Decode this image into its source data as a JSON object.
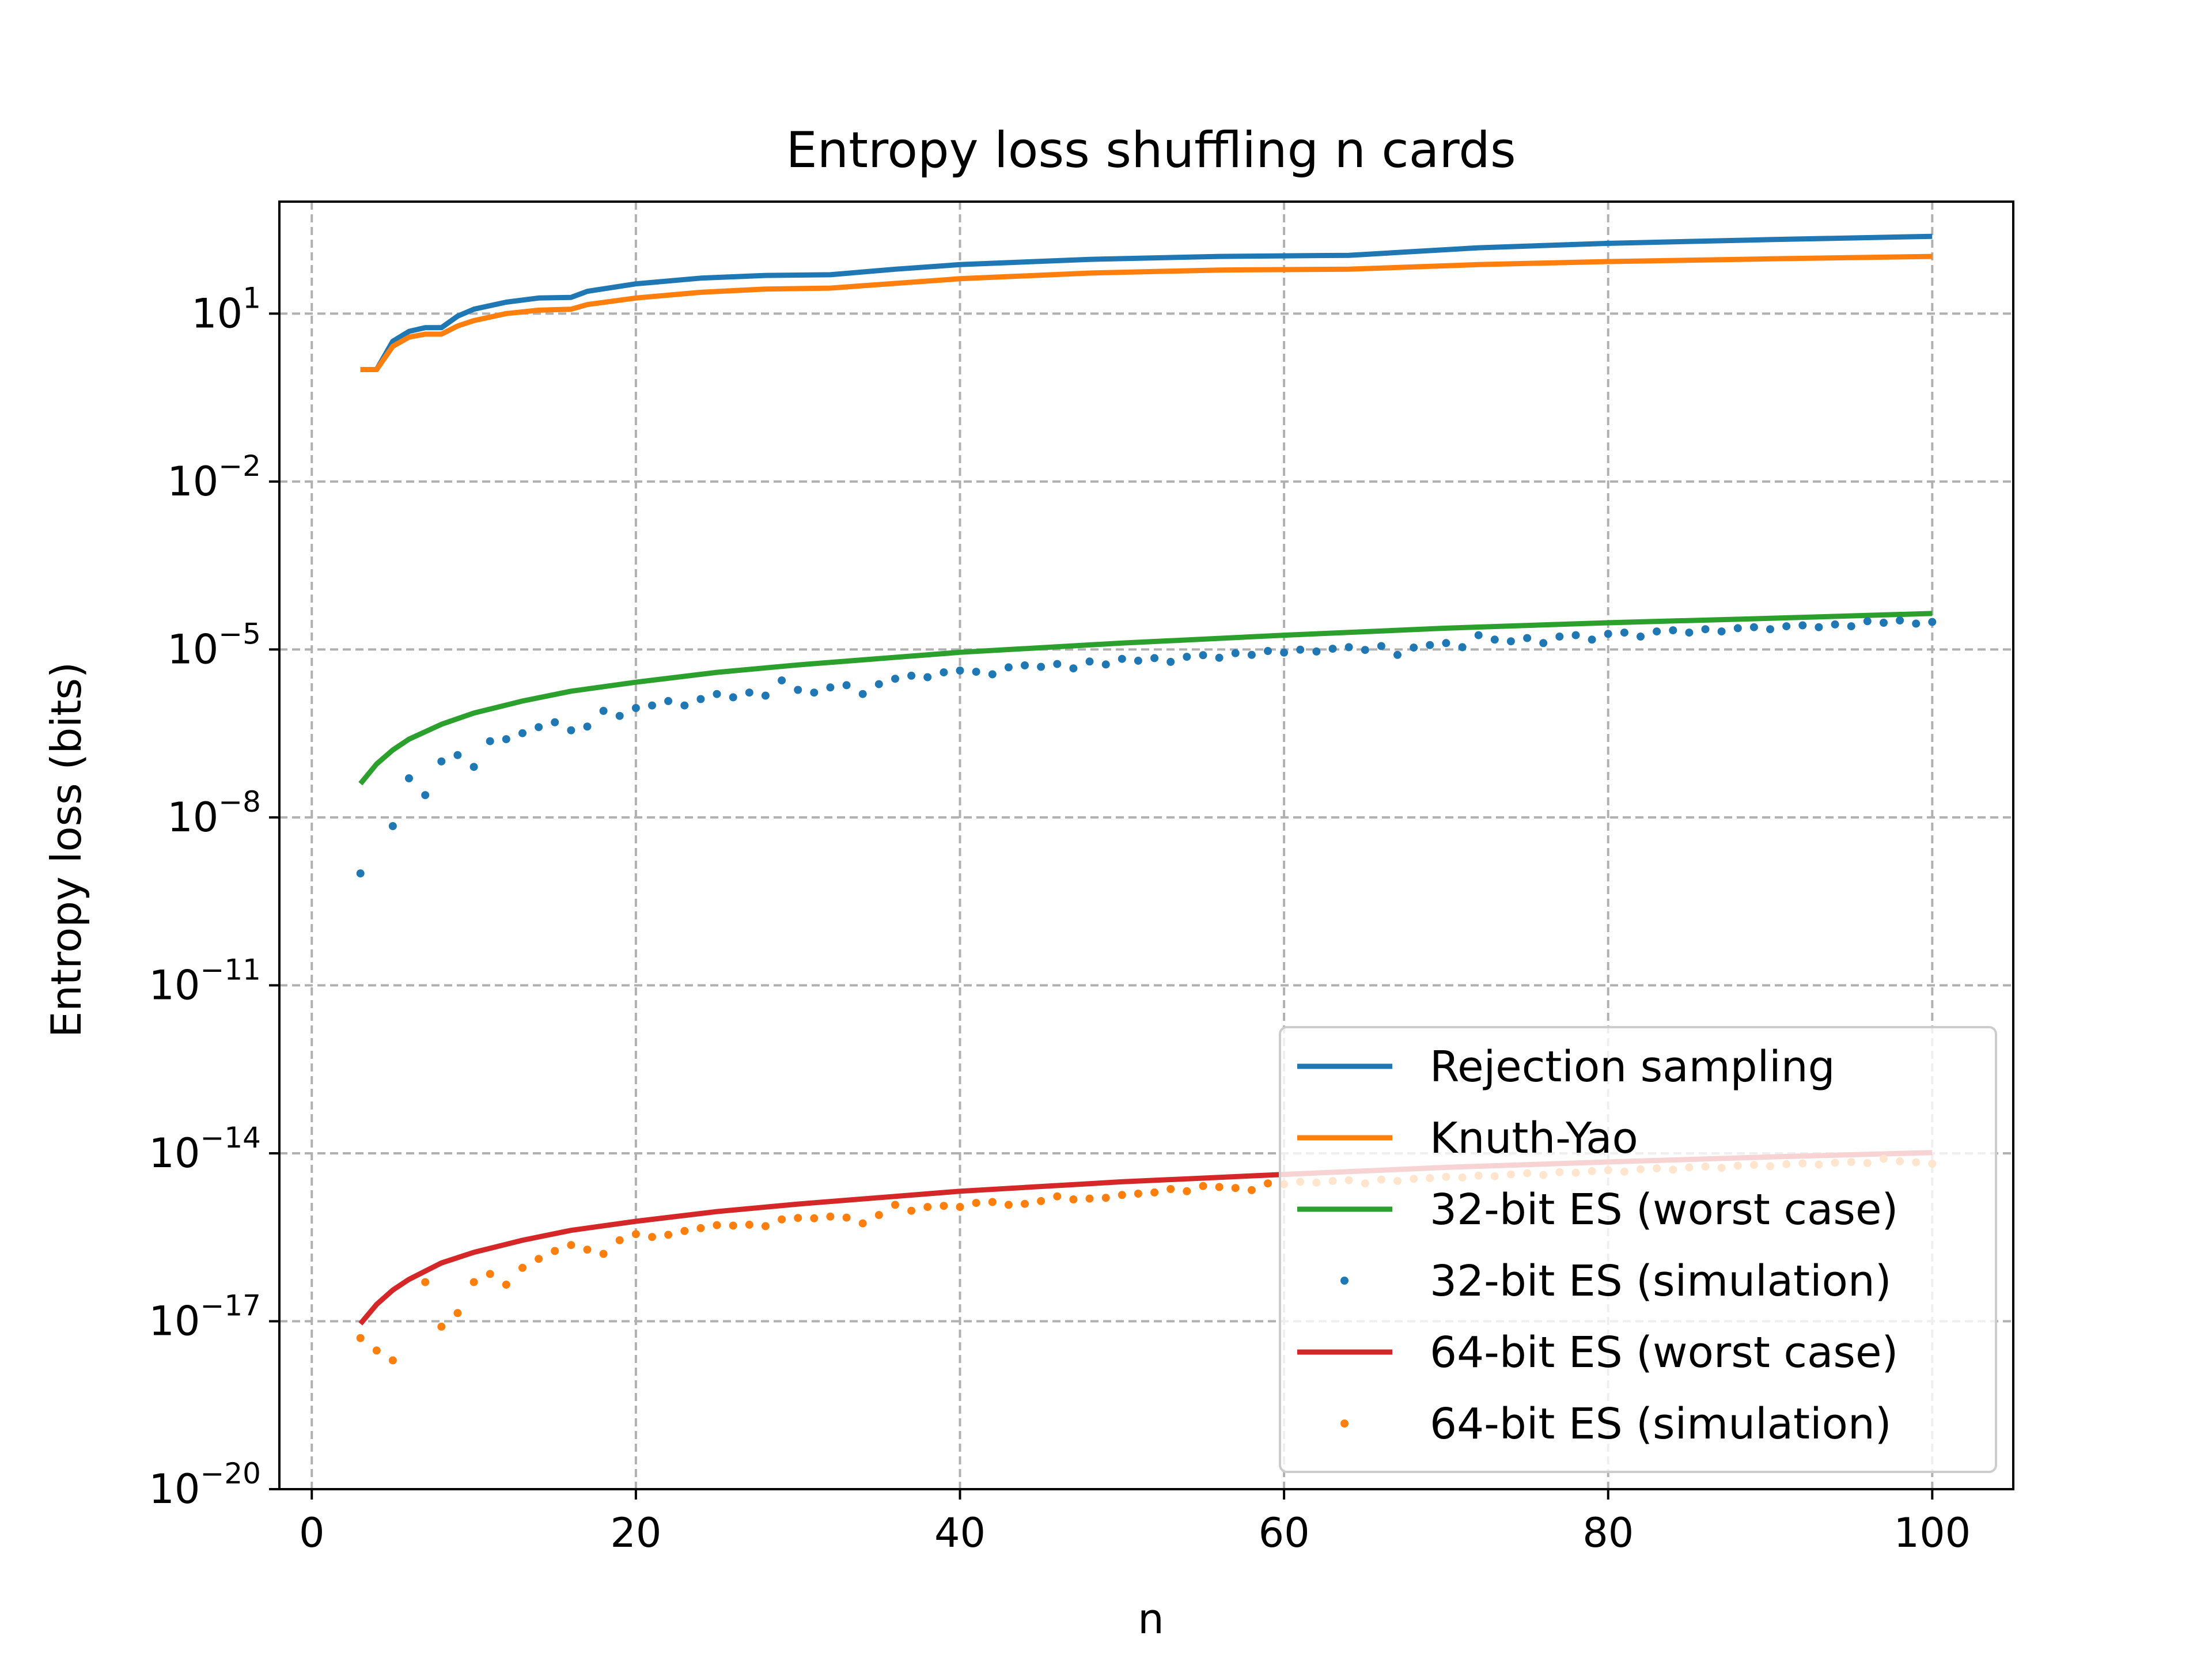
{
  "chart_data": {
    "type": "line",
    "title": "Entropy loss shuffling n cards",
    "xlabel": "n",
    "ylabel": "Entropy loss (bits)",
    "xlim": [
      -2,
      105
    ],
    "xticks": [
      0,
      20,
      40,
      60,
      80,
      100
    ],
    "yscale": "log",
    "ylim_exponent": [
      -20,
      3
    ],
    "yticks_exponent": [
      1,
      -2,
      -5,
      -8,
      -11,
      -14,
      -17,
      -20
    ],
    "grid": true,
    "legend_position": "lower-right",
    "series": [
      {
        "name": "Rejection sampling",
        "style": "line",
        "color": "#1f77b4",
        "x": [
          3,
          4,
          5,
          6,
          7,
          8,
          9,
          10,
          12,
          14,
          16,
          17,
          20,
          24,
          28,
          32,
          36,
          40,
          48,
          56,
          64,
          72,
          80,
          90,
          100
        ],
        "y": [
          1.0,
          1.0,
          3.2,
          4.8,
          5.6,
          5.6,
          9.0,
          12.0,
          16.0,
          19.0,
          19.5,
          25.0,
          34.0,
          43.0,
          48.0,
          49.5,
          62.0,
          75.0,
          93.0,
          105.0,
          110.0,
          150.0,
          180.0,
          210.0,
          240.0
        ]
      },
      {
        "name": "Knuth-Yao",
        "style": "line",
        "color": "#ff7f0e",
        "x": [
          3,
          4,
          5,
          6,
          7,
          8,
          9,
          10,
          12,
          14,
          16,
          17,
          20,
          24,
          28,
          32,
          40,
          48,
          56,
          64,
          72,
          80,
          90,
          100
        ],
        "y": [
          1.0,
          1.0,
          2.6,
          3.8,
          4.3,
          4.3,
          6.0,
          7.5,
          10.0,
          11.5,
          12.0,
          14.5,
          19.0,
          24.0,
          27.5,
          28.5,
          42.0,
          53.0,
          60.0,
          62.0,
          75.0,
          85.0,
          95.0,
          105.0
        ]
      },
      {
        "name": "32-bit ES (worst case)",
        "style": "line",
        "color": "#2ca02c",
        "x": [
          3,
          4,
          5,
          6,
          8,
          10,
          13,
          16,
          20,
          25,
          30,
          40,
          50,
          60,
          70,
          80,
          90,
          100
        ],
        "y": [
          4e-08,
          9e-08,
          1.6e-07,
          2.5e-07,
          4.6e-07,
          7.3e-07,
          1.2e-06,
          1.8e-06,
          2.6e-06,
          3.9e-06,
          5.3e-06,
          8.9e-06,
          1.3e-05,
          1.8e-05,
          2.4e-05,
          3e-05,
          3.6e-05,
          4.4e-05
        ]
      },
      {
        "name": "32-bit ES (simulation)",
        "style": "points",
        "color": "#1f77b4",
        "x": [
          3,
          5,
          6,
          7,
          8,
          9,
          10,
          11,
          12,
          13,
          14,
          15,
          16,
          17,
          18,
          19,
          20,
          21,
          22,
          23,
          24,
          25,
          26,
          27,
          28,
          29,
          30,
          31,
          32,
          33,
          34,
          35,
          36,
          37,
          38,
          39,
          40,
          41,
          42,
          43,
          44,
          45,
          46,
          47,
          48,
          49,
          50,
          51,
          52,
          53,
          54,
          55,
          56,
          57,
          58,
          59,
          60,
          61,
          62,
          63,
          64,
          65,
          66,
          67,
          68,
          69,
          70,
          71,
          72,
          73,
          74,
          75,
          76,
          77,
          78,
          79,
          80,
          81,
          82,
          83,
          84,
          85,
          86,
          87,
          88,
          89,
          90,
          91,
          92,
          93,
          94,
          95,
          96,
          97,
          98,
          99,
          100
        ],
        "y": [
          1e-09,
          7e-09,
          5e-08,
          2.5e-08,
          1e-07,
          1.3e-07,
          8e-08,
          2.3e-07,
          2.5e-07,
          3.2e-07,
          4.1e-07,
          5e-07,
          3.6e-07,
          4.2e-07,
          8e-07,
          6.5e-07,
          9e-07,
          1e-06,
          1.2e-06,
          1e-06,
          1.3e-06,
          1.6e-06,
          1.4e-06,
          1.7e-06,
          1.5e-06,
          2.8e-06,
          1.9e-06,
          1.7e-06,
          2.1e-06,
          2.3e-06,
          1.6e-06,
          2.4e-06,
          3e-06,
          3.4e-06,
          3.2e-06,
          3.9e-06,
          4.2e-06,
          4e-06,
          3.6e-06,
          4.8e-06,
          5.2e-06,
          4.9e-06,
          5.5e-06,
          4.6e-06,
          6.1e-06,
          5.4e-06,
          6.8e-06,
          6.3e-06,
          7e-06,
          6e-06,
          7.4e-06,
          7.9e-06,
          7.1e-06,
          8.6e-06,
          8e-06,
          9.4e-06,
          8.8e-06,
          9.9e-06,
          9.2e-06,
          1.03e-05,
          1.1e-05,
          9.8e-06,
          1.15e-05,
          8e-06,
          1.08e-05,
          1.2e-05,
          1.3e-05,
          1.1e-05,
          1.8e-05,
          1.5e-05,
          1.4e-05,
          1.6e-05,
          1.3e-05,
          1.7e-05,
          1.8e-05,
          1.5e-05,
          1.9e-05,
          2e-05,
          1.7e-05,
          2.1e-05,
          2.2e-05,
          2e-05,
          2.3e-05,
          2.1e-05,
          2.4e-05,
          2.5e-05,
          2.3e-05,
          2.6e-05,
          2.7e-05,
          2.5e-05,
          2.8e-05,
          2.6e-05,
          3.2e-05,
          3e-05,
          3.3e-05,
          2.9e-05,
          3.1e-05
        ]
      },
      {
        "name": "64-bit ES (worst case)",
        "style": "line",
        "color": "#d62728",
        "x": [
          3,
          4,
          5,
          6,
          8,
          10,
          13,
          16,
          20,
          25,
          30,
          40,
          50,
          60,
          70,
          80,
          90,
          100
        ],
        "y": [
          9e-18,
          2e-17,
          3.6e-17,
          5.6e-17,
          1.1e-16,
          1.7e-16,
          2.8e-16,
          4.2e-16,
          6.1e-16,
          9.1e-16,
          1.24e-15,
          2.1e-15,
          3.1e-15,
          4.2e-15,
          5.6e-15,
          7e-15,
          8.6e-15,
          1.03e-14
        ]
      },
      {
        "name": "64-bit ES (simulation)",
        "style": "points",
        "color": "#ff7f0e",
        "x": [
          3,
          4,
          5,
          7,
          8,
          9,
          10,
          11,
          12,
          13,
          14,
          15,
          16,
          17,
          18,
          19,
          20,
          21,
          22,
          23,
          24,
          25,
          26,
          27,
          28,
          29,
          30,
          31,
          32,
          33,
          34,
          35,
          36,
          37,
          38,
          39,
          40,
          41,
          42,
          43,
          44,
          45,
          46,
          47,
          48,
          49,
          50,
          51,
          52,
          53,
          54,
          55,
          56,
          57,
          58,
          59,
          60,
          61,
          62,
          63,
          64,
          65,
          66,
          67,
          68,
          69,
          70,
          71,
          72,
          73,
          74,
          75,
          76,
          77,
          78,
          79,
          80,
          81,
          82,
          83,
          84,
          85,
          86,
          87,
          88,
          89,
          90,
          91,
          92,
          93,
          94,
          95,
          96,
          97,
          98,
          99,
          100
        ],
        "y": [
          5e-18,
          3e-18,
          2e-18,
          5e-17,
          8e-18,
          1.4e-17,
          5e-17,
          7e-17,
          4.5e-17,
          9e-17,
          1.3e-16,
          1.8e-16,
          2.3e-16,
          1.9e-16,
          1.6e-16,
          2.8e-16,
          3.6e-16,
          3.2e-16,
          3.5e-16,
          4.1e-16,
          4.6e-16,
          5.2e-16,
          5.1e-16,
          5.3e-16,
          5e-16,
          6.6e-16,
          7e-16,
          6.9e-16,
          7.4e-16,
          7.1e-16,
          5.6e-16,
          7.9e-16,
          1.2e-15,
          9.4e-16,
          1.1e-15,
          1.15e-15,
          1.1e-15,
          1.3e-15,
          1.35e-15,
          1.2e-15,
          1.25e-15,
          1.4e-15,
          1.7e-15,
          1.5e-15,
          1.55e-15,
          1.6e-15,
          1.8e-15,
          1.9e-15,
          2e-15,
          2.3e-15,
          2.1e-15,
          2.6e-15,
          2.5e-15,
          2.4e-15,
          2.2e-15,
          2.9e-15,
          2.8e-15,
          3.1e-15,
          3e-15,
          3.2e-15,
          3.3e-15,
          2.9e-15,
          3.4e-15,
          3.2e-15,
          3.5e-15,
          3.6e-15,
          3.8e-15,
          3.7e-15,
          4e-15,
          3.9e-15,
          4.2e-15,
          4.4e-15,
          4.1e-15,
          4.6e-15,
          4.5e-15,
          4.8e-15,
          5e-15,
          4.7e-15,
          5.2e-15,
          5.4e-15,
          5.1e-15,
          5.6e-15,
          5.8e-15,
          5.5e-15,
          6e-15,
          6.2e-15,
          5.9e-15,
          6.4e-15,
          6.6e-15,
          6.3e-15,
          6.8e-15,
          7e-15,
          6.7e-15,
          8e-15,
          7.2e-15,
          6.9e-15,
          6.5e-15
        ]
      }
    ]
  }
}
